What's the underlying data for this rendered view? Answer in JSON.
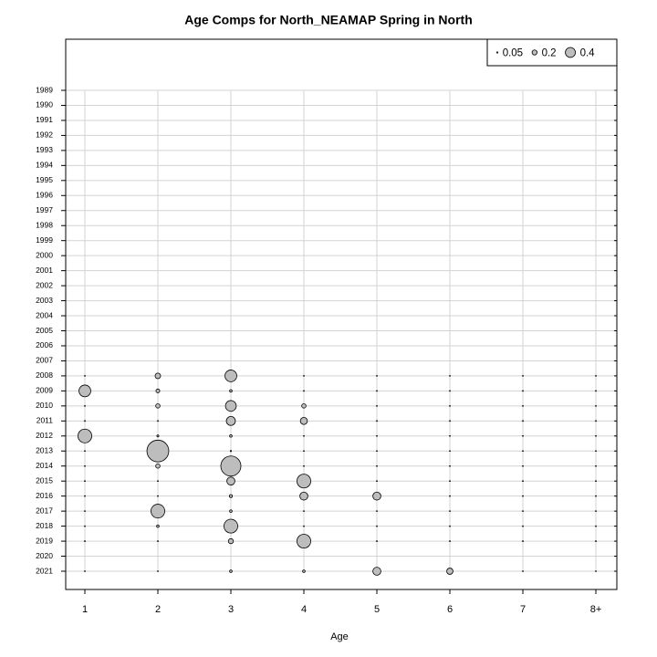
{
  "chart_data": {
    "type": "bubble",
    "title": "Age Comps for North_NEAMAP Spring in North",
    "x_label": "Age",
    "categories": [
      "1",
      "2",
      "3",
      "4",
      "5",
      "6",
      "7",
      "8+"
    ],
    "y_categories": [
      "1989",
      "1990",
      "1991",
      "1992",
      "1993",
      "1994",
      "1995",
      "1996",
      "1997",
      "1998",
      "1999",
      "2000",
      "2001",
      "2002",
      "2003",
      "2004",
      "2005",
      "2006",
      "2007",
      "2008",
      "2009",
      "2010",
      "2011",
      "2012",
      "2013",
      "2014",
      "2015",
      "2016",
      "2017",
      "2018",
      "2019",
      "2020",
      "2021"
    ],
    "size_legend": [
      0.05,
      0.2,
      0.4
    ],
    "color": "#bdbdbd",
    "grid": true,
    "legend_position": "top-right",
    "series": [
      {
        "name": "1",
        "values": [
          null,
          null,
          null,
          null,
          null,
          null,
          null,
          null,
          null,
          null,
          null,
          null,
          null,
          null,
          null,
          null,
          null,
          null,
          null,
          0.02,
          0.47,
          0.01,
          0.01,
          0.55,
          0.02,
          0.02,
          0.01,
          0.01,
          0.01,
          0.02,
          0.01,
          null,
          0.01
        ]
      },
      {
        "name": "2",
        "values": [
          null,
          null,
          null,
          null,
          null,
          null,
          null,
          null,
          null,
          null,
          null,
          null,
          null,
          null,
          null,
          null,
          null,
          null,
          null,
          0.22,
          0.15,
          0.17,
          0.02,
          0.08,
          0.87,
          0.17,
          0.02,
          0.02,
          0.55,
          0.1,
          0.02,
          null,
          0.02
        ]
      },
      {
        "name": "3",
        "values": [
          null,
          null,
          null,
          null,
          null,
          null,
          null,
          null,
          null,
          null,
          null,
          null,
          null,
          null,
          null,
          null,
          null,
          null,
          null,
          0.47,
          0.1,
          0.43,
          0.36,
          0.1,
          0.05,
          0.8,
          0.32,
          0.12,
          0.1,
          0.55,
          0.2,
          null,
          0.1
        ]
      },
      {
        "name": "4",
        "values": [
          null,
          null,
          null,
          null,
          null,
          null,
          null,
          null,
          null,
          null,
          null,
          null,
          null,
          null,
          null,
          null,
          null,
          null,
          null,
          0.02,
          0.02,
          0.17,
          0.28,
          0.02,
          0.02,
          0.02,
          0.55,
          0.32,
          0.02,
          0.02,
          0.55,
          null,
          0.1
        ]
      },
      {
        "name": "5",
        "values": [
          null,
          null,
          null,
          null,
          null,
          null,
          null,
          null,
          null,
          null,
          null,
          null,
          null,
          null,
          null,
          null,
          null,
          null,
          null,
          0.01,
          0.01,
          0.01,
          0.01,
          0.01,
          0.01,
          0.01,
          0.02,
          0.32,
          0.01,
          0.01,
          0.01,
          null,
          0.32
        ]
      },
      {
        "name": "6",
        "values": [
          null,
          null,
          null,
          null,
          null,
          null,
          null,
          null,
          null,
          null,
          null,
          null,
          null,
          null,
          null,
          null,
          null,
          null,
          null,
          0.01,
          0.01,
          0.01,
          0.01,
          0.01,
          0.01,
          0.01,
          0.01,
          0.01,
          0.01,
          0.01,
          0.01,
          null,
          0.25
        ]
      },
      {
        "name": "7",
        "values": [
          null,
          null,
          null,
          null,
          null,
          null,
          null,
          null,
          null,
          null,
          null,
          null,
          null,
          null,
          null,
          null,
          null,
          null,
          null,
          0.01,
          0.01,
          0.01,
          0.01,
          0.01,
          0.01,
          0.01,
          0.01,
          0.01,
          0.01,
          0.01,
          0.01,
          null,
          0.01
        ]
      },
      {
        "name": "8+",
        "values": [
          null,
          null,
          null,
          null,
          null,
          null,
          null,
          null,
          null,
          null,
          null,
          null,
          null,
          null,
          null,
          null,
          null,
          null,
          null,
          0.01,
          0.01,
          0.01,
          0.01,
          0.01,
          0.01,
          0.01,
          0.01,
          0.01,
          0.01,
          0.01,
          0.01,
          null,
          0.01
        ]
      }
    ]
  }
}
